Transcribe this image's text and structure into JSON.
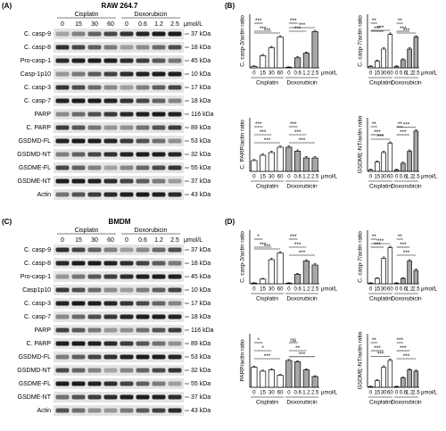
{
  "blots": [
    {
      "label": "(A)",
      "cell": "RAW 264.7",
      "groups": [
        "Cisplatin",
        "Doxorubicin"
      ],
      "doses": [
        "0",
        "15",
        "30",
        "60",
        "0",
        "0.6",
        "1.2",
        "2.5"
      ],
      "unit": "μmol/L",
      "rows": [
        {
          "name": "C. casp-9",
          "size": "37 kDa"
        },
        {
          "name": "C. casp-8",
          "size": "18 kDa"
        },
        {
          "name": "Pro-casp-1",
          "size": "45 kDa"
        },
        {
          "name": "Casp-1p10",
          "size": "10 kDa"
        },
        {
          "name": "C. casp-3",
          "size": "17 kDa"
        },
        {
          "name": "C. casp-7",
          "size": "18 kDa"
        },
        {
          "name": "PARP",
          "size": "116 kDa"
        },
        {
          "name": "C. PARP",
          "size": "89 kDa"
        },
        {
          "name": "GSDMD-FL",
          "size": "53 kDa"
        },
        {
          "name": "GSDMD-NT",
          "size": "32 kDa"
        },
        {
          "name": "GSDME-FL",
          "size": "55 kDa"
        },
        {
          "name": "GSDME-NT",
          "size": "37 kDa"
        },
        {
          "name": "Actin",
          "size": "43 kDa"
        }
      ]
    },
    {
      "label": "(C)",
      "cell": "BMDM",
      "groups": [
        "Cisplatin",
        "Doxorubicin"
      ],
      "doses": [
        "0",
        "15",
        "30",
        "60",
        "0",
        "0.6",
        "1.2",
        "2.5"
      ],
      "unit": "μmol/L",
      "rows": [
        {
          "name": "C. casp-9",
          "size": "37 kDa"
        },
        {
          "name": "C. casp-8",
          "size": "18 kDa"
        },
        {
          "name": "Pro-casp-1",
          "size": "45 kDa"
        },
        {
          "name": "Casp1p10",
          "size": "10 kDa"
        },
        {
          "name": "C. casp-3",
          "size": "17 kDa"
        },
        {
          "name": "C. casp-7",
          "size": "18 kDa"
        },
        {
          "name": "PARP",
          "size": "116 kDa"
        },
        {
          "name": "C. PARP",
          "size": "89 kDa"
        },
        {
          "name": "GSDMD-FL",
          "size": "53 kDa"
        },
        {
          "name": "GSDMD-NT",
          "size": "32 kDa"
        },
        {
          "name": "GSDME-FL",
          "size": "55 kDa"
        },
        {
          "name": "GSDME-NT",
          "size": "37 kDa"
        },
        {
          "name": "Actin",
          "size": "43 kDa"
        }
      ]
    }
  ],
  "chart_panels": [
    {
      "label": "(B)"
    },
    {
      "label": "(D)"
    }
  ],
  "chart_data": [
    {
      "type": "bar",
      "ylabel": "C. casp-3/actin ratio",
      "categories": [
        "0",
        "15",
        "30",
        "60",
        "0",
        "0.6",
        "1.2",
        "2.5"
      ],
      "groups": [
        "Cisplatin",
        "Doxorubicin"
      ],
      "unit": "μmol/L",
      "colors": [
        "#ffffff",
        "#a6a6a6"
      ],
      "values": [
        0.1,
        0.9,
        1.5,
        2.3,
        0.05,
        0.75,
        1.1,
        2.7
      ],
      "errors": [
        0.05,
        0.1,
        0.1,
        0.1,
        0.03,
        0.08,
        0.08,
        0.1
      ],
      "ylim": [
        0,
        4
      ],
      "annotations": [
        {
          "text": "***",
          "bars": [
            0,
            1
          ]
        },
        {
          "text": "***",
          "bars": [
            0,
            2
          ]
        },
        {
          "text": "***",
          "bars": [
            0,
            3
          ]
        },
        {
          "text": "***",
          "bars": [
            4,
            5
          ]
        },
        {
          "text": "***",
          "bars": [
            4,
            6
          ]
        },
        {
          "text": "***",
          "bars": [
            4,
            7
          ]
        }
      ]
    },
    {
      "type": "bar",
      "ylabel": "C. casp-7/actin ratio",
      "categories": [
        "0",
        "15",
        "30",
        "60",
        "0",
        "0.6",
        "1.2",
        "2.5"
      ],
      "groups": [
        "Cisplatin",
        "Doxorubicin"
      ],
      "unit": "μmol/L",
      "colors": [
        "#ffffff",
        "#a6a6a6"
      ],
      "values": [
        0.1,
        0.5,
        1.4,
        2.5,
        0.1,
        0.6,
        1.4,
        2.3
      ],
      "errors": [
        0.05,
        0.08,
        0.1,
        0.1,
        0.05,
        0.08,
        0.1,
        0.1
      ],
      "ylim": [
        0,
        4
      ],
      "annotations": [
        {
          "text": "**",
          "bars": [
            0,
            1
          ]
        },
        {
          "text": "***",
          "bars": [
            0,
            2
          ]
        },
        {
          "text": "***",
          "bars": [
            0,
            3
          ]
        },
        {
          "text": "**",
          "bars": [
            4,
            5
          ]
        },
        {
          "text": "***",
          "bars": [
            4,
            6
          ]
        },
        {
          "text": "***",
          "bars": [
            4,
            7
          ]
        }
      ]
    },
    {
      "type": "bar",
      "ylabel": "C. PARP/actin ratio",
      "categories": [
        "0",
        "15",
        "30",
        "60",
        "0",
        "0.6",
        "1.2",
        "2.5"
      ],
      "groups": [
        "Cisplatin",
        "Doxorubicin"
      ],
      "unit": "μmol/L",
      "colors": [
        "#ffffff",
        "#a6a6a6"
      ],
      "values": [
        0.8,
        1.2,
        1.4,
        1.8,
        1.8,
        1.5,
        1.0,
        1.0
      ],
      "errors": [
        0.08,
        0.1,
        0.1,
        0.1,
        0.1,
        0.1,
        0.1,
        0.1
      ],
      "ylim": [
        0,
        4
      ],
      "annotations": [
        {
          "text": "***",
          "bars": [
            0,
            1
          ]
        },
        {
          "text": "***",
          "bars": [
            0,
            2
          ]
        },
        {
          "text": "***",
          "bars": [
            0,
            3
          ]
        },
        {
          "text": "***",
          "bars": [
            4,
            5
          ]
        },
        {
          "text": "***",
          "bars": [
            4,
            6
          ]
        },
        {
          "text": "***",
          "bars": [
            4,
            7
          ]
        }
      ]
    },
    {
      "type": "bar",
      "ylabel": "GSDME-NT/actin ratio",
      "categories": [
        "0",
        "15",
        "30",
        "60",
        "0",
        "0.6",
        "1.2",
        "2.5"
      ],
      "groups": [
        "Cisplatin",
        "Doxorubicin"
      ],
      "unit": "μmol/L",
      "colors": [
        "#ffffff",
        "#a6a6a6"
      ],
      "values": [
        0.1,
        0.7,
        1.4,
        2.1,
        0.1,
        0.6,
        1.5,
        3.0
      ],
      "errors": [
        0.05,
        0.08,
        0.1,
        0.1,
        0.05,
        0.08,
        0.1,
        0.1
      ],
      "ylim": [
        0,
        4
      ],
      "annotations": [
        {
          "text": "**",
          "bars": [
            0,
            1
          ]
        },
        {
          "text": "***",
          "bars": [
            0,
            2
          ]
        },
        {
          "text": "***",
          "bars": [
            0,
            3
          ]
        },
        {
          "text": "**",
          "bars": [
            4,
            5
          ]
        },
        {
          "text": "***",
          "bars": [
            4,
            6
          ]
        },
        {
          "text": "***",
          "bars": [
            4,
            7
          ]
        }
      ]
    },
    {
      "type": "bar",
      "ylabel": "C. casp-3/actin ratio",
      "categories": [
        "0",
        "15",
        "30",
        "60",
        "0",
        "0.6",
        "1.2",
        "2.5"
      ],
      "groups": [
        "Cisplatin",
        "Doxorubicin"
      ],
      "unit": "μmol/L",
      "colors": [
        "#ffffff",
        "#a6a6a6"
      ],
      "values": [
        0.05,
        0.35,
        1.8,
        2.3,
        0.05,
        0.7,
        1.7,
        1.4
      ],
      "errors": [
        0.03,
        0.05,
        0.1,
        0.1,
        0.03,
        0.08,
        0.1,
        0.1
      ],
      "ylim": [
        0,
        4
      ],
      "annotations": [
        {
          "text": "*",
          "bars": [
            0,
            1
          ]
        },
        {
          "text": "***",
          "bars": [
            0,
            2
          ]
        },
        {
          "text": "***",
          "bars": [
            0,
            3
          ]
        },
        {
          "text": "***",
          "bars": [
            4,
            5
          ]
        },
        {
          "text": "***",
          "bars": [
            4,
            6
          ]
        },
        {
          "text": "***",
          "bars": [
            4,
            7
          ]
        }
      ]
    },
    {
      "type": "bar",
      "ylabel": "C. casp-7/actin ratio",
      "categories": [
        "0",
        "15",
        "30",
        "60",
        "0",
        "0.6",
        "1.2",
        "2.5"
      ],
      "groups": [
        "Cisplatin",
        "Doxorubicin"
      ],
      "unit": "μmol/L",
      "colors": [
        "#ffffff",
        "#a6a6a6"
      ],
      "values": [
        0.05,
        0.4,
        1.9,
        2.7,
        0.05,
        0.4,
        1.7,
        1.0
      ],
      "errors": [
        0.03,
        0.05,
        0.1,
        0.1,
        0.03,
        0.05,
        0.1,
        0.1
      ],
      "ylim": [
        0,
        4
      ],
      "annotations": [
        {
          "text": "**",
          "bars": [
            0,
            1
          ]
        },
        {
          "text": "***",
          "bars": [
            0,
            2
          ]
        },
        {
          "text": "***",
          "bars": [
            0,
            3
          ]
        },
        {
          "text": "**",
          "bars": [
            4,
            5
          ]
        },
        {
          "text": "***",
          "bars": [
            4,
            6
          ]
        },
        {
          "text": "***",
          "bars": [
            4,
            7
          ]
        }
      ]
    },
    {
      "type": "bar",
      "ylabel": "PARP/actin ratio",
      "categories": [
        "0",
        "15",
        "30",
        "60",
        "0",
        "0.6",
        "1.2",
        "2.5"
      ],
      "groups": [
        "Cisplatin",
        "Doxorubicin"
      ],
      "unit": "μmol/L",
      "colors": [
        "#ffffff",
        "#a6a6a6"
      ],
      "values": [
        1.5,
        1.2,
        1.3,
        0.9,
        2.0,
        1.9,
        1.3,
        0.8
      ],
      "errors": [
        0.08,
        0.08,
        0.08,
        0.06,
        0.08,
        0.08,
        0.08,
        0.06
      ],
      "ylim": [
        0,
        4
      ],
      "annotations": [
        {
          "text": "*",
          "bars": [
            0,
            1
          ]
        },
        {
          "text": "*",
          "bars": [
            0,
            2
          ]
        },
        {
          "text": "***",
          "bars": [
            0,
            3
          ]
        },
        {
          "text": "ns",
          "bars": [
            4,
            5
          ]
        },
        {
          "text": "**",
          "bars": [
            4,
            6
          ]
        },
        {
          "text": "***",
          "bars": [
            4,
            7
          ]
        }
      ]
    },
    {
      "type": "bar",
      "ylabel": "GSDME-NT/actin ratio",
      "categories": [
        "0",
        "15",
        "30",
        "60",
        "0",
        "0.6",
        "1.2",
        "2.5"
      ],
      "groups": [
        "Cisplatin",
        "Doxorubicin"
      ],
      "unit": "μmol/L",
      "colors": [
        "#ffffff",
        "#a6a6a6"
      ],
      "values": [
        0.05,
        0.5,
        1.5,
        2.0,
        0.05,
        0.7,
        1.3,
        1.2
      ],
      "errors": [
        0.03,
        0.06,
        0.1,
        0.1,
        0.03,
        0.06,
        0.08,
        0.08
      ],
      "ylim": [
        0,
        4
      ],
      "annotations": [
        {
          "text": "**",
          "bars": [
            0,
            1
          ]
        },
        {
          "text": "***",
          "bars": [
            0,
            2
          ]
        },
        {
          "text": "***",
          "bars": [
            0,
            3
          ]
        },
        {
          "text": "***",
          "bars": [
            4,
            5
          ]
        },
        {
          "text": "***",
          "bars": [
            4,
            6
          ]
        },
        {
          "text": "***",
          "bars": [
            4,
            7
          ]
        }
      ]
    }
  ]
}
